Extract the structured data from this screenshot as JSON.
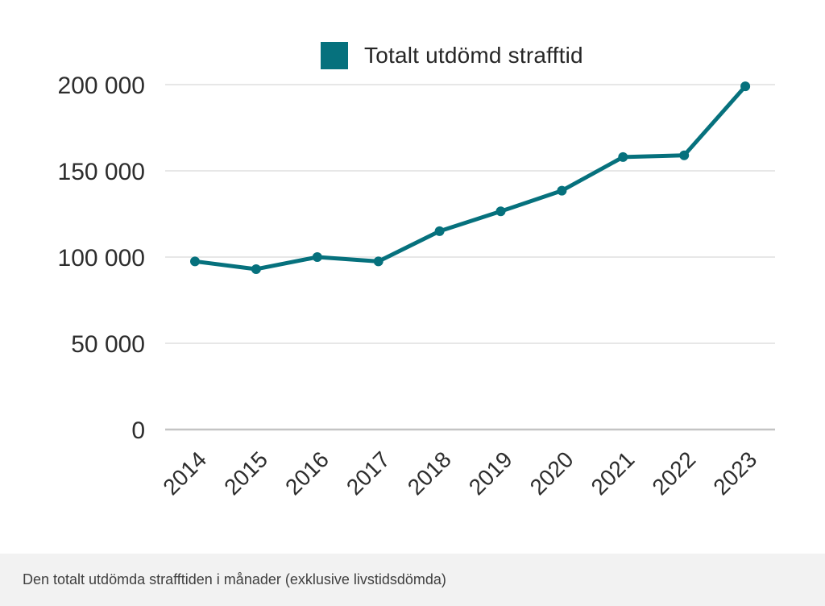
{
  "chart_data": {
    "type": "line",
    "title": "",
    "xlabel": "",
    "ylabel": "",
    "legend": {
      "label": "Totalt utdömd strafftid",
      "position": "top"
    },
    "categories": [
      "2014",
      "2015",
      "2016",
      "2017",
      "2018",
      "2019",
      "2020",
      "2021",
      "2022",
      "2023"
    ],
    "series": [
      {
        "name": "Totalt utdömd strafftid",
        "values": [
          97500,
          93000,
          100000,
          97500,
          115000,
          126500,
          138500,
          158000,
          159000,
          199000
        ]
      }
    ],
    "ylim": [
      0,
      200000
    ],
    "yticks": [
      0,
      50000,
      100000,
      150000,
      200000
    ],
    "ytick_labels": [
      "0",
      "50 000",
      "100 000",
      "150 000",
      "200 000"
    ],
    "grid": true,
    "x_label_rotation": -45,
    "marker": "circle"
  },
  "caption": {
    "text": "Den totalt utdömda strafftiden i månader (exklusive livstidsdömda)"
  },
  "colors": {
    "accent": "#06717d",
    "gridline": "#e7e7e7",
    "axis_line": "#c4c4c4",
    "label_text": "#2d2d2d",
    "caption_bg": "#f2f2f2",
    "caption_text": "#3f3f3f"
  }
}
